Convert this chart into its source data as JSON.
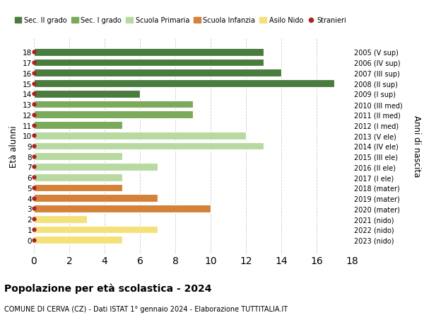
{
  "ages": [
    18,
    17,
    16,
    15,
    14,
    13,
    12,
    11,
    10,
    9,
    8,
    7,
    6,
    5,
    4,
    3,
    2,
    1,
    0
  ],
  "years": [
    "2005 (V sup)",
    "2006 (IV sup)",
    "2007 (III sup)",
    "2008 (II sup)",
    "2009 (I sup)",
    "2010 (III med)",
    "2011 (II med)",
    "2012 (I med)",
    "2013 (V ele)",
    "2014 (IV ele)",
    "2015 (III ele)",
    "2016 (II ele)",
    "2017 (I ele)",
    "2018 (mater)",
    "2019 (mater)",
    "2020 (mater)",
    "2021 (nido)",
    "2022 (nido)",
    "2023 (nido)"
  ],
  "values": [
    13,
    13,
    14,
    17,
    6,
    9,
    9,
    5,
    12,
    13,
    5,
    7,
    5,
    5,
    7,
    10,
    3,
    7,
    5
  ],
  "colors": [
    "#4a7c3f",
    "#4a7c3f",
    "#4a7c3f",
    "#4a7c3f",
    "#4a7c3f",
    "#7aaa5a",
    "#7aaa5a",
    "#7aaa5a",
    "#b8d9a0",
    "#b8d9a0",
    "#b8d9a0",
    "#b8d9a0",
    "#b8d9a0",
    "#d4813a",
    "#d4813a",
    "#d4813a",
    "#f5e17a",
    "#f5e17a",
    "#f5e17a"
  ],
  "stranieri_color": "#aa2222",
  "legend_items": [
    {
      "label": "Sec. II grado",
      "color": "#4a7c3f",
      "type": "patch"
    },
    {
      "label": "Sec. I grado",
      "color": "#7aaa5a",
      "type": "patch"
    },
    {
      "label": "Scuola Primaria",
      "color": "#b8d9a0",
      "type": "patch"
    },
    {
      "label": "Scuola Infanzia",
      "color": "#d4813a",
      "type": "patch"
    },
    {
      "label": "Asilo Nido",
      "color": "#f5e17a",
      "type": "patch"
    },
    {
      "label": "Stranieri",
      "color": "#aa2222",
      "type": "circle"
    }
  ],
  "ylabel_left": "Età alunni",
  "ylabel_right": "Anni di nascita",
  "xlim": [
    0,
    18
  ],
  "xticks": [
    0,
    2,
    4,
    6,
    8,
    10,
    12,
    14,
    16,
    18
  ],
  "title": "Popolazione per età scolastica - 2024",
  "subtitle": "COMUNE DI CERVA (CZ) - Dati ISTAT 1° gennaio 2024 - Elaborazione TUTTITALIA.IT",
  "bg_color": "#ffffff",
  "grid_color": "#cccccc",
  "bar_height": 0.72
}
